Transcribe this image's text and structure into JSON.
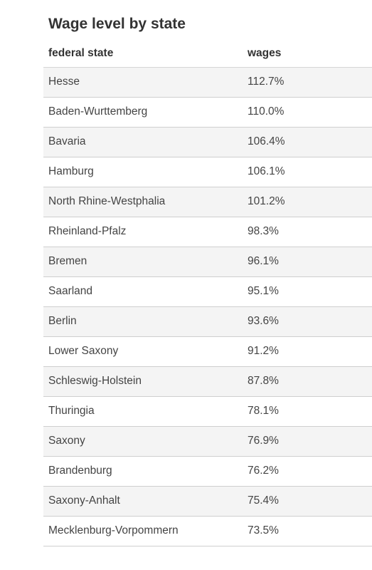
{
  "chart_data": {
    "type": "table",
    "title": "Wage level by state",
    "columns": [
      "federal state",
      "wages"
    ],
    "rows": [
      [
        "Hesse",
        "112.7%"
      ],
      [
        "Baden-Wurttemberg",
        "110.0%"
      ],
      [
        "Bavaria",
        "106.4%"
      ],
      [
        "Hamburg",
        "106.1%"
      ],
      [
        "North Rhine-Westphalia",
        "101.2%"
      ],
      [
        "Rheinland-Pfalz",
        "98.3%"
      ],
      [
        "Bremen",
        "96.1%"
      ],
      [
        "Saarland",
        "95.1%"
      ],
      [
        "Berlin",
        "93.6%"
      ],
      [
        "Lower Saxony",
        "91.2%"
      ],
      [
        "Schleswig-Holstein",
        "87.8%"
      ],
      [
        "Thuringia",
        "78.1%"
      ],
      [
        "Saxony",
        "76.9%"
      ],
      [
        "Brandenburg",
        "76.2%"
      ],
      [
        "Saxony-Anhalt",
        "75.4%"
      ],
      [
        "Mecklenburg-Vorpommern",
        "73.5%"
      ]
    ],
    "values": [
      112.7,
      110.0,
      106.4,
      106.1,
      101.2,
      98.3,
      96.1,
      95.1,
      93.6,
      91.2,
      87.8,
      78.1,
      76.9,
      76.2,
      75.4,
      73.5
    ]
  },
  "colors": {
    "text": "#333333",
    "stripe": "#f4f4f4",
    "border": "#cfcfcf"
  }
}
